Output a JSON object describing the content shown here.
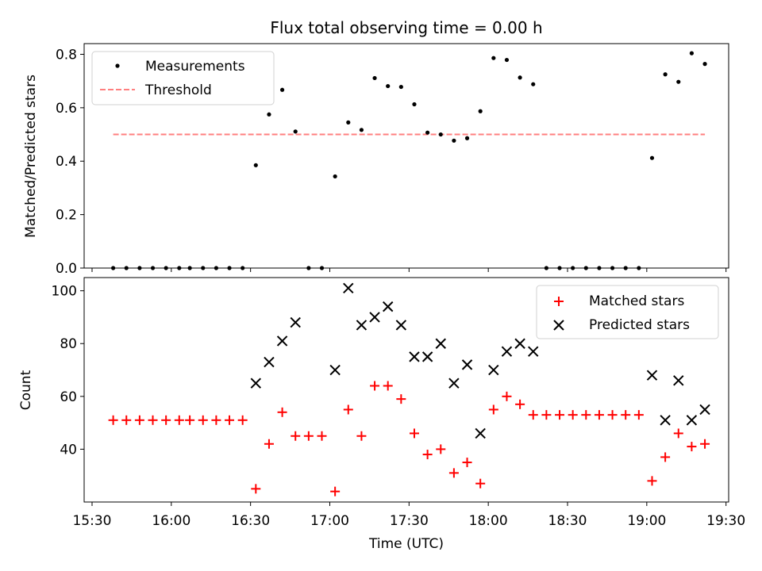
{
  "chart_data": [
    {
      "type": "scatter",
      "title": "Flux total observing time = 0.00 h",
      "xlabel": "",
      "ylabel": "Matched/Predicted stars",
      "xlim": [
        "15:27",
        "19:31"
      ],
      "ylim": [
        0,
        0.84
      ],
      "yticks": [
        "0.0",
        "0.2",
        "0.4",
        "0.6",
        "0.8"
      ],
      "legend_position": "top-left",
      "series": [
        {
          "name": "Measurements",
          "marker": "dot",
          "color": "#000000",
          "points": [
            [
              "15:38",
              0.0
            ],
            [
              "15:43",
              0.0
            ],
            [
              "15:48",
              0.0
            ],
            [
              "15:53",
              0.0
            ],
            [
              "15:58",
              0.0
            ],
            [
              "16:03",
              0.0
            ],
            [
              "16:07",
              0.0
            ],
            [
              "16:12",
              0.0
            ],
            [
              "16:17",
              0.0
            ],
            [
              "16:22",
              0.0
            ],
            [
              "16:27",
              0.0
            ],
            [
              "16:32",
              0.385
            ],
            [
              "16:37",
              0.575
            ],
            [
              "16:42",
              0.667
            ],
            [
              "16:47",
              0.511
            ],
            [
              "16:52",
              0.0
            ],
            [
              "16:57",
              0.0
            ],
            [
              "17:02",
              0.343
            ],
            [
              "17:07",
              0.545
            ],
            [
              "17:12",
              0.517
            ],
            [
              "17:17",
              0.711
            ],
            [
              "17:22",
              0.681
            ],
            [
              "17:27",
              0.678
            ],
            [
              "17:32",
              0.613
            ],
            [
              "17:37",
              0.507
            ],
            [
              "17:42",
              0.5
            ],
            [
              "17:47",
              0.477
            ],
            [
              "17:52",
              0.486
            ],
            [
              "17:57",
              0.587
            ],
            [
              "18:02",
              0.786
            ],
            [
              "18:07",
              0.779
            ],
            [
              "18:12",
              0.713
            ],
            [
              "18:17",
              0.688
            ],
            [
              "18:22",
              0.0
            ],
            [
              "18:27",
              0.0
            ],
            [
              "18:32",
              0.0
            ],
            [
              "18:37",
              0.0
            ],
            [
              "18:42",
              0.0
            ],
            [
              "18:47",
              0.0
            ],
            [
              "18:52",
              0.0
            ],
            [
              "18:57",
              0.0
            ],
            [
              "19:02",
              0.412
            ],
            [
              "19:07",
              0.725
            ],
            [
              "19:12",
              0.697
            ],
            [
              "19:17",
              0.804
            ],
            [
              "19:22",
              0.764
            ]
          ]
        },
        {
          "name": "Threshold",
          "line": "dashed",
          "color": "#ff7f7f",
          "points": [
            [
              "15:38",
              0.5
            ],
            [
              "19:22",
              0.5
            ]
          ]
        }
      ]
    },
    {
      "type": "scatter",
      "title": "",
      "xlabel": "Time (UTC)",
      "ylabel": "Count",
      "xlim": [
        "15:27",
        "19:31"
      ],
      "ylim": [
        20,
        105
      ],
      "yticks": [
        "40",
        "60",
        "80",
        "100"
      ],
      "xticks": [
        "15:30",
        "16:00",
        "16:30",
        "17:00",
        "17:30",
        "18:00",
        "18:30",
        "19:00",
        "19:30"
      ],
      "legend_position": "top-right",
      "series": [
        {
          "name": "Matched stars",
          "marker": "plus",
          "color": "#ff0000",
          "points": [
            [
              "15:38",
              51
            ],
            [
              "15:43",
              51
            ],
            [
              "15:48",
              51
            ],
            [
              "15:53",
              51
            ],
            [
              "15:58",
              51
            ],
            [
              "16:03",
              51
            ],
            [
              "16:07",
              51
            ],
            [
              "16:12",
              51
            ],
            [
              "16:17",
              51
            ],
            [
              "16:22",
              51
            ],
            [
              "16:27",
              51
            ],
            [
              "16:32",
              25
            ],
            [
              "16:37",
              42
            ],
            [
              "16:42",
              54
            ],
            [
              "16:47",
              45
            ],
            [
              "16:52",
              45
            ],
            [
              "16:57",
              45
            ],
            [
              "17:02",
              24
            ],
            [
              "17:07",
              55
            ],
            [
              "17:12",
              45
            ],
            [
              "17:17",
              64
            ],
            [
              "17:22",
              64
            ],
            [
              "17:27",
              59
            ],
            [
              "17:32",
              46
            ],
            [
              "17:37",
              38
            ],
            [
              "17:42",
              40
            ],
            [
              "17:47",
              31
            ],
            [
              "17:52",
              35
            ],
            [
              "17:57",
              27
            ],
            [
              "18:02",
              55
            ],
            [
              "18:07",
              60
            ],
            [
              "18:12",
              57
            ],
            [
              "18:17",
              53
            ],
            [
              "18:22",
              53
            ],
            [
              "18:27",
              53
            ],
            [
              "18:32",
              53
            ],
            [
              "18:37",
              53
            ],
            [
              "18:42",
              53
            ],
            [
              "18:47",
              53
            ],
            [
              "18:52",
              53
            ],
            [
              "18:57",
              53
            ],
            [
              "19:02",
              28
            ],
            [
              "19:07",
              37
            ],
            [
              "19:12",
              46
            ],
            [
              "19:17",
              41
            ],
            [
              "19:22",
              42
            ]
          ]
        },
        {
          "name": "Predicted stars",
          "marker": "x",
          "color": "#000000",
          "points": [
            [
              "16:32",
              65
            ],
            [
              "16:37",
              73
            ],
            [
              "16:42",
              81
            ],
            [
              "16:47",
              88
            ],
            [
              "17:02",
              70
            ],
            [
              "17:07",
              101
            ],
            [
              "17:12",
              87
            ],
            [
              "17:17",
              90
            ],
            [
              "17:22",
              94
            ],
            [
              "17:27",
              87
            ],
            [
              "17:32",
              75
            ],
            [
              "17:37",
              75
            ],
            [
              "17:42",
              80
            ],
            [
              "17:47",
              65
            ],
            [
              "17:52",
              72
            ],
            [
              "17:57",
              46
            ],
            [
              "18:02",
              70
            ],
            [
              "18:07",
              77
            ],
            [
              "18:12",
              80
            ],
            [
              "18:17",
              77
            ],
            [
              "19:02",
              68
            ],
            [
              "19:07",
              51
            ],
            [
              "19:12",
              66
            ],
            [
              "19:17",
              51
            ],
            [
              "19:22",
              55
            ]
          ]
        }
      ]
    }
  ]
}
